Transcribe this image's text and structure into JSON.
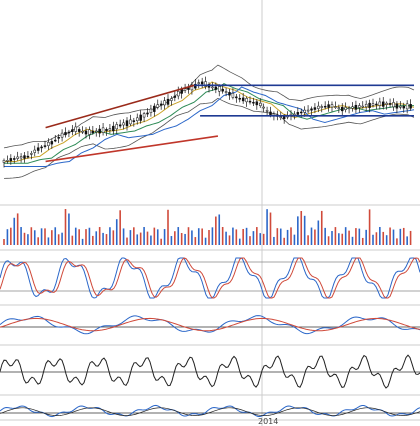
{
  "chart_data": [
    {
      "panel": "price",
      "type": "line",
      "series": [
        {
          "values": [
            [
              0,
              148
            ],
            [
              4,
              150
            ],
            [
              8,
              151
            ],
            [
              12,
              156
            ],
            [
              16,
              159
            ],
            [
              20,
              164
            ],
            [
              24,
              167
            ],
            [
              28,
              165
            ],
            [
              32,
              166
            ],
            [
              36,
              167
            ],
            [
              40,
              170
            ],
            [
              44,
              172
            ],
            [
              48,
              176
            ],
            [
              52,
              181
            ],
            [
              56,
              184
            ],
            [
              60,
              190
            ],
            [
              64,
              192
            ],
            [
              66,
              195
            ],
            [
              70,
              192
            ],
            [
              74,
              190
            ],
            [
              78,
              186
            ],
            [
              82,
              184
            ],
            [
              86,
              182
            ],
            [
              90,
              176
            ],
            [
              94,
              174
            ],
            [
              98,
              176
            ],
            [
              102,
              178
            ],
            [
              106,
              180
            ],
            [
              110,
              181
            ],
            [
              114,
              179
            ],
            [
              118,
              180
            ],
            [
              122,
              181
            ],
            [
              126,
              182
            ],
            [
              130,
              182
            ],
            [
              134,
              180
            ],
            [
              138,
              181
            ]
          ]
        }
      ],
      "bands": true,
      "trend_lines": [
        {
          "color": "#9a2a1a",
          "from": [
            14,
            168
          ],
          "to": [
            64,
            193
          ]
        },
        {
          "color": "#c0362a",
          "from": [
            14,
            148
          ],
          "to": [
            72,
            163
          ]
        },
        {
          "color": "#1f3a93",
          "from": [
            64,
            193
          ],
          "to": [
            138,
            193
          ]
        },
        {
          "color": "#1f3a93",
          "from": [
            66,
            175
          ],
          "to": [
            138,
            175
          ]
        }
      ]
    },
    {
      "panel": "volume",
      "type": "bar"
    },
    {
      "panel": "stochastic",
      "type": "line"
    },
    {
      "panel": "macd",
      "type": "line"
    },
    {
      "panel": "oscillator-1",
      "type": "line"
    },
    {
      "panel": "oscillator-2",
      "type": "line"
    }
  ],
  "xaxis": {
    "tick_label": "2014"
  },
  "colors": {
    "blue": "#2b67c9",
    "red": "#d04a3a",
    "black": "#222222",
    "green": "#2e8b57",
    "yellow": "#c9a227",
    "grid": "#cccccc",
    "trend_red": "#b23a2a",
    "trend_blue": "#1f3a93"
  }
}
